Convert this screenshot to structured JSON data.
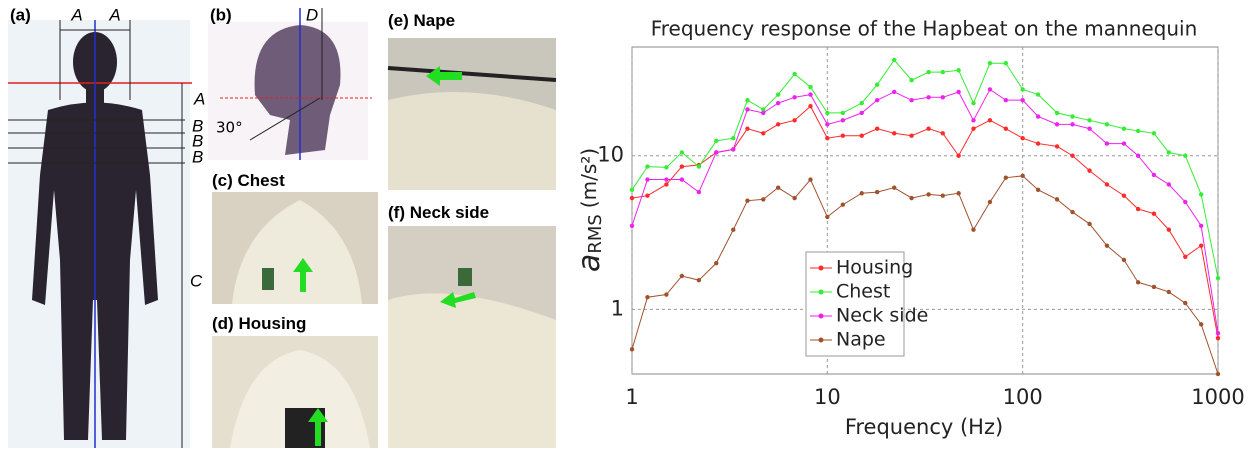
{
  "panels": {
    "a": {
      "label": "(a)",
      "dims": [
        "A",
        "A",
        "A",
        "B",
        "B",
        "B",
        "C"
      ]
    },
    "b": {
      "label": "(b)",
      "dims": [
        "D"
      ],
      "angle": "30°"
    },
    "c": {
      "label": "(c)",
      "name": "Chest"
    },
    "d": {
      "label": "(d)",
      "name": "Housing"
    },
    "e": {
      "label": "(e)",
      "name": "Nape"
    },
    "f": {
      "label": "(f)",
      "name": "Neck side"
    }
  },
  "chart_data": {
    "type": "line",
    "title": "Frequency response of the Hapbeat on the mannequin",
    "xlabel": "Frequency (Hz)",
    "ylabel": {
      "symbol": "a",
      "subscript": "RMS",
      "unit": "(m/s²)"
    },
    "xscale": "log",
    "yscale": "log",
    "grid": true,
    "legend": "lower center",
    "x": [
      1,
      1.2,
      1.5,
      1.8,
      2.2,
      2.7,
      3.3,
      3.9,
      4.7,
      5.6,
      6.8,
      8.2,
      10,
      12,
      15,
      18,
      22,
      27,
      33,
      39,
      47,
      56,
      68,
      82,
      100,
      120,
      150,
      180,
      220,
      270,
      330,
      390,
      470,
      560,
      680,
      820,
      1000
    ],
    "xlim": [
      1,
      1000
    ],
    "xticks": [
      1,
      10,
      100,
      1000
    ],
    "ylim": [
      0.38,
      51
    ],
    "yticks": [
      1,
      10
    ],
    "series": [
      {
        "name": "Housing",
        "color": "#ff2a2a",
        "values": [
          5.3,
          5.5,
          6.5,
          8.5,
          8.7,
          10.5,
          11,
          15,
          14,
          16,
          17,
          21,
          13,
          13.5,
          13.5,
          15,
          14,
          13.5,
          15,
          14,
          10,
          15,
          17,
          15,
          13,
          12,
          11.5,
          10,
          8,
          6.5,
          5.5,
          4.5,
          4.2,
          3.3,
          2.2,
          2.6,
          0.65
        ]
      },
      {
        "name": "Chest",
        "color": "#33ee33",
        "values": [
          6,
          8.5,
          8.4,
          10.5,
          8.5,
          12.5,
          13,
          23,
          20,
          25,
          34,
          28,
          19,
          19,
          22,
          29,
          42,
          31,
          35,
          35,
          36,
          22,
          40,
          40,
          27,
          25,
          19,
          18,
          17,
          16,
          15,
          14.5,
          14,
          10.5,
          10,
          5.6,
          1.6
        ]
      },
      {
        "name": "Neck side",
        "color": "#ee22ee",
        "values": [
          3.5,
          7,
          7,
          7,
          5.8,
          10.5,
          11,
          20,
          19,
          22,
          24,
          25,
          16,
          17,
          19,
          23,
          26,
          23,
          24,
          24,
          26,
          17,
          27,
          23,
          23,
          18,
          16,
          16,
          15,
          12,
          12,
          10,
          7.5,
          6.5,
          5,
          3.5,
          0.7
        ]
      },
      {
        "name": "Nape",
        "color": "#a0522d",
        "values": [
          0.55,
          1.2,
          1.25,
          1.65,
          1.55,
          2.0,
          3.3,
          5.1,
          5.2,
          6.2,
          5.3,
          7.0,
          4.0,
          4.8,
          5.7,
          5.8,
          6.2,
          5.3,
          5.6,
          5.5,
          5.7,
          3.3,
          5.0,
          7.2,
          7.4,
          6.0,
          5.2,
          4.3,
          3.6,
          2.6,
          2.1,
          1.5,
          1.4,
          1.3,
          1.1,
          0.8,
          0.38
        ]
      }
    ]
  }
}
